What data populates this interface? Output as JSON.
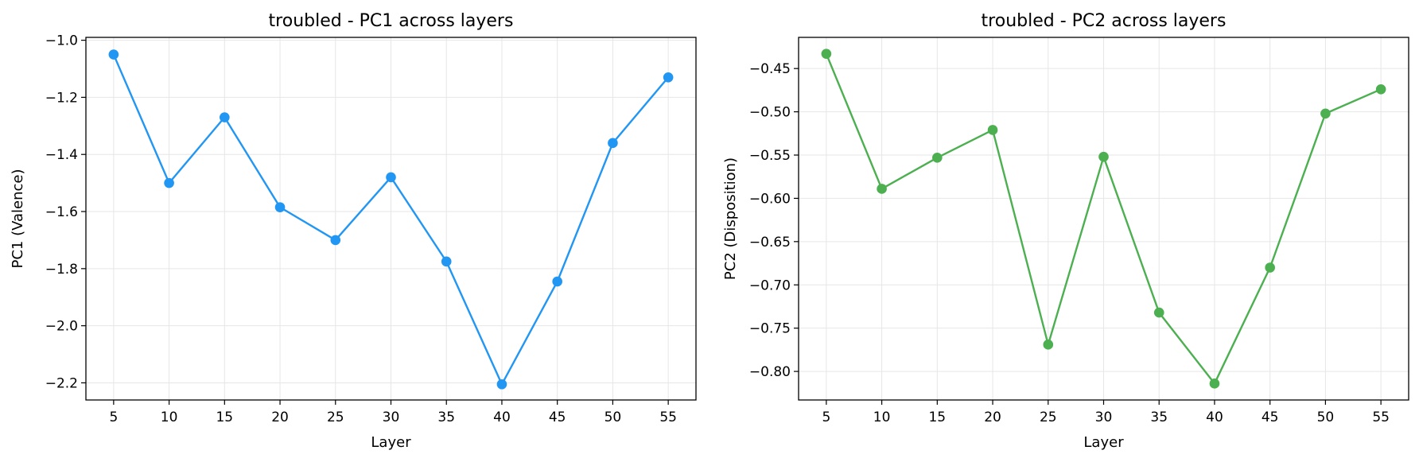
{
  "chart_data": [
    {
      "type": "line",
      "title": "troubled - PC1 across layers",
      "xlabel": "Layer",
      "ylabel": "PC1 (Valence)",
      "x": [
        5,
        10,
        15,
        20,
        25,
        30,
        35,
        40,
        45,
        50,
        55
      ],
      "x_ticks": [
        "5",
        "10",
        "15",
        "20",
        "25",
        "30",
        "35",
        "40",
        "45",
        "50",
        "55"
      ],
      "y_ticks": [
        "−1.0",
        "−1.2",
        "−1.4",
        "−1.6",
        "−1.8",
        "−2.0",
        "−2.2"
      ],
      "y_tick_values": [
        -1.0,
        -1.2,
        -1.4,
        -1.6,
        -1.8,
        -2.0,
        -2.2
      ],
      "xlim": [
        2.5,
        57.5
      ],
      "ylim": [
        -2.26,
        -0.99
      ],
      "grid": true,
      "series": [
        {
          "values": [
            -1.05,
            -1.5,
            -1.27,
            -1.585,
            -1.7,
            -1.48,
            -1.775,
            -2.205,
            -1.845,
            -1.36,
            -1.13
          ],
          "color": "#2196F3"
        }
      ]
    },
    {
      "type": "line",
      "title": "troubled - PC2 across layers",
      "xlabel": "Layer",
      "ylabel": "PC2 (Disposition)",
      "x": [
        5,
        10,
        15,
        20,
        25,
        30,
        35,
        40,
        45,
        50,
        55
      ],
      "x_ticks": [
        "5",
        "10",
        "15",
        "20",
        "25",
        "30",
        "35",
        "40",
        "45",
        "50",
        "55"
      ],
      "y_ticks": [
        "−0.45",
        "−0.50",
        "−0.55",
        "−0.60",
        "−0.65",
        "−0.70",
        "−0.75",
        "−0.80"
      ],
      "y_tick_values": [
        -0.45,
        -0.5,
        -0.55,
        -0.6,
        -0.65,
        -0.7,
        -0.75,
        -0.8
      ],
      "xlim": [
        2.5,
        57.5
      ],
      "ylim": [
        -0.833,
        -0.414
      ],
      "grid": true,
      "series": [
        {
          "values": [
            -0.433,
            -0.589,
            -0.553,
            -0.521,
            -0.769,
            -0.552,
            -0.732,
            -0.814,
            -0.68,
            -0.502,
            -0.474
          ],
          "color": "#4CAF50"
        }
      ]
    }
  ]
}
